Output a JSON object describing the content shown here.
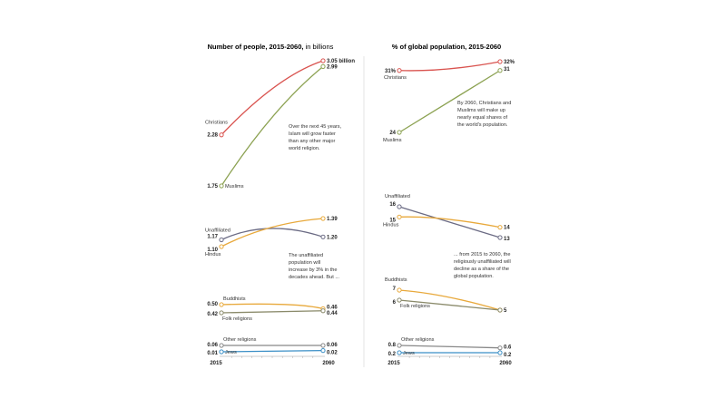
{
  "chart_data": [
    {
      "type": "line",
      "title": "Number of people, 2015-2060,",
      "title_suffix": " in billions",
      "x": [
        2015,
        2060
      ],
      "xlabels": [
        "2015",
        "2060"
      ],
      "series": [
        {
          "name": "Christians",
          "values": [
            2.28,
            3.05
          ],
          "start_label": "2.28",
          "end_label": "3.05 billion",
          "color": "#d9534f"
        },
        {
          "name": "Muslims",
          "values": [
            1.75,
            2.99
          ],
          "start_label": "1.75",
          "end_label": "2.99",
          "color": "#8ca252"
        },
        {
          "name": "Unaffiliated",
          "values": [
            1.17,
            1.2
          ],
          "start_label": "1.17",
          "end_label": "1.20",
          "color": "#6b6b84"
        },
        {
          "name": "Hindus",
          "values": [
            1.1,
            1.39
          ],
          "start_label": "1.10",
          "end_label": "1.39",
          "color": "#e8a93c"
        },
        {
          "name": "Buddhists",
          "values": [
            0.5,
            0.46
          ],
          "start_label": "0.50",
          "end_label": "0.46",
          "color": "#e8a93c"
        },
        {
          "name": "Folk religions",
          "values": [
            0.42,
            0.44
          ],
          "start_label": "0.42",
          "end_label": "0.44",
          "color": "#8a8a6a"
        },
        {
          "name": "Other religions",
          "values": [
            0.06,
            0.06
          ],
          "start_label": "0.06",
          "end_label": "0.06",
          "color": "#888888"
        },
        {
          "name": "Jews",
          "values": [
            0.01,
            0.02
          ],
          "start_label": "0.01",
          "end_label": "0.02",
          "color": "#3b8fc6"
        }
      ],
      "annotations": [
        [
          "Over the next 45 years,",
          "Islam will grow faster",
          "than any other major",
          "world religion."
        ],
        [
          "The unaffiliated",
          "population will",
          "increase by 3% in the",
          "decades ahead. But ..."
        ]
      ]
    },
    {
      "type": "line",
      "title": "% of global population, 2015-2060",
      "x": [
        2015,
        2060
      ],
      "xlabels": [
        "2015",
        "2060"
      ],
      "series": [
        {
          "name": "Christians",
          "values": [
            31,
            32
          ],
          "start_label": "31%",
          "end_label": "32%",
          "color": "#d9534f"
        },
        {
          "name": "Muslims",
          "values": [
            24,
            31
          ],
          "start_label": "24",
          "end_label": "31",
          "color": "#8ca252"
        },
        {
          "name": "Unaffiliated",
          "values": [
            16,
            13
          ],
          "start_label": "16",
          "end_label": "13",
          "color": "#6b6b84"
        },
        {
          "name": "Hindus",
          "values": [
            15,
            14
          ],
          "start_label": "15",
          "end_label": "14",
          "color": "#e8a93c"
        },
        {
          "name": "Buddhists",
          "values": [
            7,
            5
          ],
          "start_label": "7",
          "end_label": "5",
          "color": "#e8a93c"
        },
        {
          "name": "Folk religions",
          "values": [
            6,
            5
          ],
          "start_label": "6",
          "end_label": "",
          "color": "#8a8a6a"
        },
        {
          "name": "Other religions",
          "values": [
            0.8,
            0.6
          ],
          "start_label": "0.8",
          "end_label": "0.6",
          "color": "#888888"
        },
        {
          "name": "Jews",
          "values": [
            0.2,
            0.2
          ],
          "start_label": "0.2",
          "end_label": "0.2",
          "color": "#3b8fc6"
        }
      ],
      "annotations": [
        [
          "By 2060, Christians and",
          "Muslims will make up",
          "nearly equal shares of",
          "the world's population."
        ],
        [
          "... from 2015 to 2060, the",
          "religiously unaffiliated will",
          "decline as a share of the",
          "global population."
        ]
      ]
    }
  ]
}
